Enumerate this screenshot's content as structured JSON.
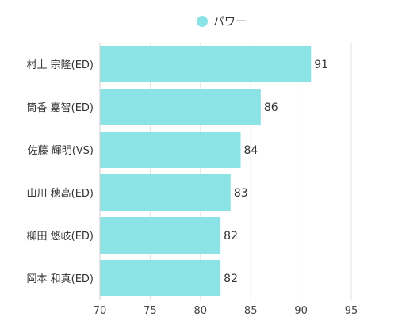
{
  "chart_data": {
    "type": "bar",
    "orientation": "horizontal",
    "categories": [
      "村上 宗隆(ED)",
      "筒香 嘉智(ED)",
      "佐藤 輝明(VS)",
      "山川 穂高(ED)",
      "柳田 悠岐(ED)",
      "岡本 和真(ED)"
    ],
    "series": [
      {
        "name": "パワー",
        "values": [
          91,
          86,
          84,
          83,
          82,
          82
        ],
        "color": "#8ce3e6"
      }
    ],
    "xlim": [
      70,
      95
    ],
    "xticks": [
      70,
      75,
      80,
      85,
      90,
      95
    ],
    "grid": true,
    "legend": "top-center",
    "data_labels": true
  }
}
